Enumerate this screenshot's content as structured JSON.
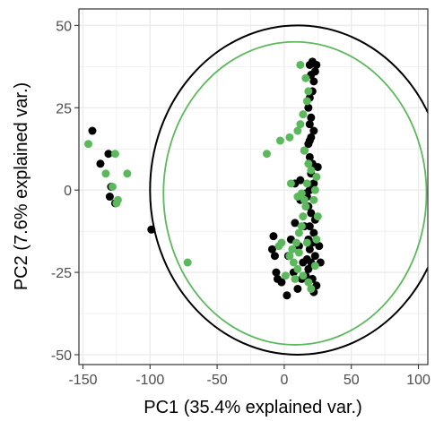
{
  "chart_data": {
    "type": "scatter",
    "xlabel": "PC1 (35.4% explained var.)",
    "ylabel": "PC2 (7.6% explained var.)",
    "xlim": [
      -153,
      107
    ],
    "ylim": [
      -53,
      55
    ],
    "x_ticks": [
      -150,
      -100,
      -50,
      0,
      50,
      100
    ],
    "y_ticks": [
      -50,
      -25,
      0,
      25,
      50
    ],
    "grid": true,
    "legend": "none",
    "colors": {
      "black": "#000000",
      "green": "#5cb85c",
      "grid": "#ebebeb",
      "panel_border": "#333333"
    },
    "series": [
      {
        "color": "#000000",
        "points": [
          [
            -143,
            18
          ],
          [
            -137,
            8
          ],
          [
            -131,
            11
          ],
          [
            -129,
            1
          ],
          [
            -130,
            -2
          ],
          [
            -126,
            -4
          ],
          [
            -99,
            -12
          ],
          [
            19,
            38
          ],
          [
            21,
            39
          ],
          [
            23,
            36
          ],
          [
            24,
            38
          ],
          [
            20,
            35
          ],
          [
            22,
            33
          ],
          [
            21,
            30
          ],
          [
            19,
            28
          ],
          [
            18,
            25
          ],
          [
            20,
            22
          ],
          [
            19,
            20
          ],
          [
            22,
            18
          ],
          [
            20,
            16
          ],
          [
            18,
            14
          ],
          [
            19,
            10
          ],
          [
            21,
            8
          ],
          [
            20,
            5
          ],
          [
            22,
            2
          ],
          [
            19,
            0
          ],
          [
            17,
            -2
          ],
          [
            18,
            -5
          ],
          [
            20,
            -7
          ],
          [
            23,
            -9
          ],
          [
            19,
            -11
          ],
          [
            22,
            -13
          ],
          [
            18,
            -15
          ],
          [
            21,
            -16
          ],
          [
            19,
            -18
          ],
          [
            23,
            -20
          ],
          [
            20,
            -22
          ],
          [
            18,
            -24
          ],
          [
            21,
            -27
          ],
          [
            24,
            -29
          ],
          [
            22,
            -31
          ],
          [
            12,
            -3
          ],
          [
            8,
            -10
          ],
          [
            5,
            -15
          ],
          [
            3,
            -20
          ],
          [
            7,
            -25
          ],
          [
            -6,
            -25
          ],
          [
            -2,
            -28
          ],
          [
            2,
            -32
          ],
          [
            10,
            -30
          ],
          [
            14,
            -22
          ],
          [
            11,
            -17
          ],
          [
            -8,
            -14
          ],
          [
            -9,
            -18
          ],
          [
            15,
            -11
          ],
          [
            17,
            -21
          ],
          [
            16,
            -26
          ],
          [
            13,
            -27
          ],
          [
            -5,
            -27
          ],
          [
            26,
            -17
          ],
          [
            27,
            -22
          ],
          [
            12,
            3
          ],
          [
            15,
            12
          ],
          [
            19,
            15
          ],
          [
            25,
            7
          ],
          [
            16,
            -1
          ],
          [
            8,
            2
          ],
          [
            -7,
            -20
          ]
        ]
      },
      {
        "color": "#5cb85c",
        "points": [
          [
            -146,
            14
          ],
          [
            -133,
            5
          ],
          [
            -128,
            1
          ],
          [
            -125,
            -4
          ],
          [
            -124,
            -3
          ],
          [
            -126,
            11
          ],
          [
            -117,
            5
          ],
          [
            -72,
            -22
          ],
          [
            12,
            38
          ],
          [
            16,
            34
          ],
          [
            18,
            30
          ],
          [
            17,
            27
          ],
          [
            14,
            23
          ],
          [
            12,
            20
          ],
          [
            10,
            18
          ],
          [
            -3,
            15
          ],
          [
            -13,
            11
          ],
          [
            4,
            16
          ],
          [
            15,
            12
          ],
          [
            18,
            8
          ],
          [
            20,
            6
          ],
          [
            17,
            2
          ],
          [
            13,
            -1
          ],
          [
            15,
            -3
          ],
          [
            16,
            -5
          ],
          [
            14,
            -8
          ],
          [
            13,
            -11
          ],
          [
            11,
            -13
          ],
          [
            9,
            -16
          ],
          [
            6,
            -18
          ],
          [
            4,
            -20
          ],
          [
            7,
            -22
          ],
          [
            10,
            -24
          ],
          [
            14,
            -26
          ],
          [
            18,
            -28
          ],
          [
            20,
            -30
          ],
          [
            23,
            -23
          ],
          [
            24,
            -15
          ],
          [
            25,
            -8
          ],
          [
            22,
            -3
          ],
          [
            17,
            -16
          ],
          [
            11,
            -19
          ],
          [
            8,
            -27
          ],
          [
            1,
            -26
          ],
          [
            -2,
            -16
          ],
          [
            -4,
            -17
          ],
          [
            10,
            -2
          ],
          [
            5,
            2
          ],
          [
            23,
            0
          ],
          [
            24,
            4
          ]
        ]
      }
    ],
    "ellipses": [
      {
        "color": "#000000",
        "cx": 10,
        "cy": 0,
        "rx": 110,
        "ry": 50
      },
      {
        "color": "#5cb85c",
        "cx": 8,
        "cy": -1,
        "rx": 98,
        "ry": 46
      }
    ]
  }
}
